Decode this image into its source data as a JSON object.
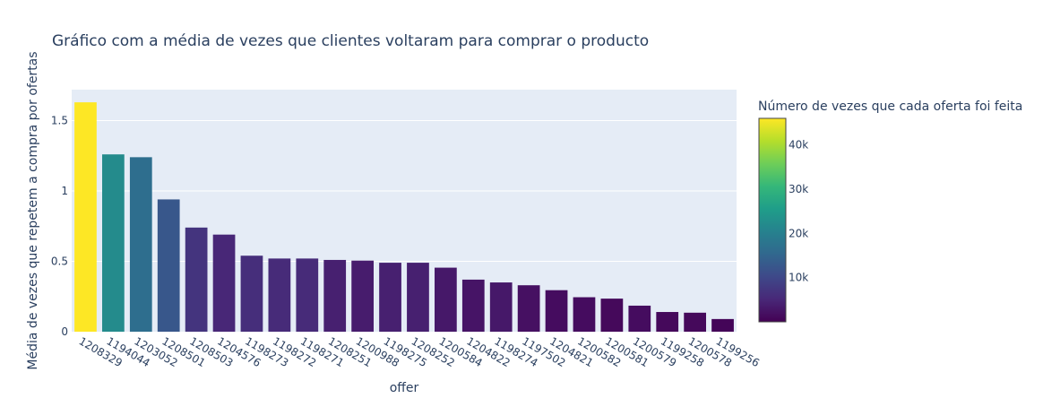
{
  "chart_data": {
    "type": "bar",
    "title": "Gráfico com a média de vezes que clientes voltaram para comprar o producto",
    "xlabel": "offer",
    "ylabel": "Média de vezes que repetem a compra por ofertas",
    "categories": [
      "1208329",
      "1194044",
      "1203052",
      "1208501",
      "1208503",
      "1204576",
      "1198273",
      "1198272",
      "1198271",
      "1208251",
      "1200988",
      "1198275",
      "1208252",
      "1200584",
      "1204822",
      "1198274",
      "1197502",
      "1204821",
      "1200582",
      "1200581",
      "1200579",
      "1199258",
      "1200578",
      "1199256"
    ],
    "values": [
      1.63,
      1.26,
      1.24,
      0.94,
      0.74,
      0.69,
      0.54,
      0.52,
      0.52,
      0.51,
      0.505,
      0.49,
      0.49,
      0.455,
      0.37,
      0.35,
      0.33,
      0.295,
      0.245,
      0.235,
      0.185,
      0.14,
      0.135,
      0.09
    ],
    "color_values": [
      46000,
      22000,
      16500,
      12500,
      7000,
      5000,
      6000,
      5500,
      5500,
      4000,
      3500,
      4000,
      4000,
      3000,
      2500,
      3000,
      2000,
      1500,
      1500,
      1000,
      1500,
      1000,
      1000,
      500
    ],
    "ylim": [
      0,
      1.72
    ],
    "yticks": [
      {
        "v": 0,
        "label": "0"
      },
      {
        "v": 0.5,
        "label": "0.5"
      },
      {
        "v": 1,
        "label": "1"
      },
      {
        "v": 1.5,
        "label": "1.5"
      }
    ],
    "grid": true,
    "colorbar": {
      "title": "Número de vezes que cada oferta foi feita",
      "colorscale": "Viridis",
      "min": 0,
      "max": 46000,
      "ticks": [
        {
          "v": 10000,
          "label": "10k"
        },
        {
          "v": 20000,
          "label": "20k"
        },
        {
          "v": 30000,
          "label": "30k"
        },
        {
          "v": 40000,
          "label": "40k"
        }
      ]
    },
    "colors": {
      "plot_bg": "#e5ecf6",
      "paper_bg": "#ffffff",
      "grid": "#ffffff",
      "text": "#2a3f5f",
      "viridis": [
        "#440154",
        "#482878",
        "#3e4989",
        "#31688e",
        "#26828e",
        "#1f9e89",
        "#35b779",
        "#6ece58",
        "#b5de2b",
        "#fde725"
      ]
    }
  }
}
